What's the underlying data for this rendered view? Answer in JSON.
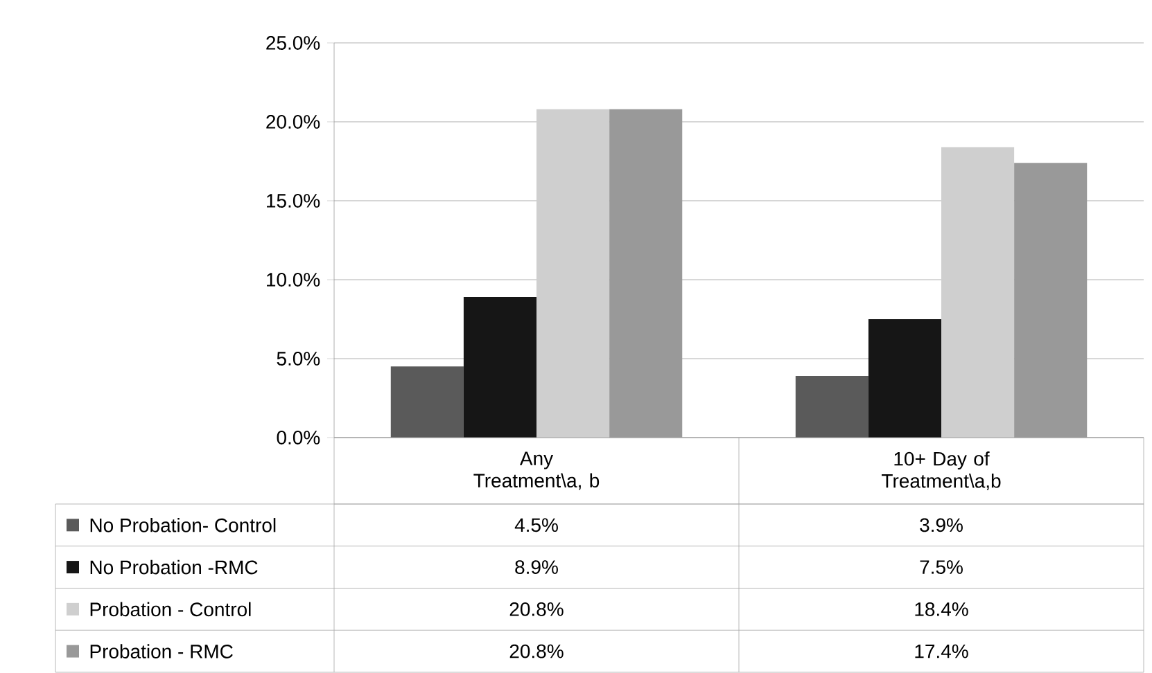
{
  "chart_data": {
    "type": "bar",
    "categories": [
      "Any Treatment\\a, b",
      "10+ Day of Treatment\\a,b"
    ],
    "series": [
      {
        "name": "No Probation- Control",
        "color": "#5a5a5a",
        "values": [
          4.5,
          3.9
        ],
        "value_labels": [
          "4.5%",
          "3.9%"
        ]
      },
      {
        "name": "No Probation -RMC",
        "color": "#161616",
        "values": [
          8.9,
          7.5
        ],
        "value_labels": [
          "8.9%",
          "7.5%"
        ]
      },
      {
        "name": "Probation - Control",
        "color": "#cfcfcf",
        "values": [
          20.8,
          18.4
        ],
        "value_labels": [
          "20.8%",
          "18.4%"
        ]
      },
      {
        "name": "Probation - RMC",
        "color": "#999999",
        "values": [
          20.8,
          17.4
        ],
        "value_labels": [
          "20.8%",
          "17.4%"
        ]
      }
    ],
    "ylim": [
      0,
      25
    ],
    "yticks": [
      {
        "value": 0,
        "label": "0.0%"
      },
      {
        "value": 5,
        "label": "5.0%"
      },
      {
        "value": 10,
        "label": "10.0%"
      },
      {
        "value": 15,
        "label": "15.0%"
      },
      {
        "value": 20,
        "label": "20.0%"
      },
      {
        "value": 25,
        "label": "25.0%"
      }
    ],
    "grid": "y",
    "legend": "bottom"
  }
}
